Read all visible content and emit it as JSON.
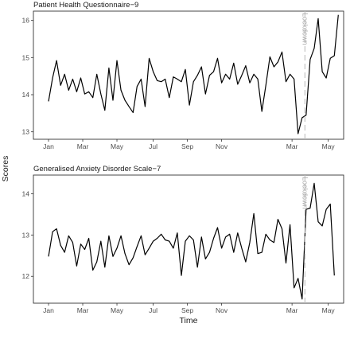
{
  "figure": {
    "x_axis_title": "Time",
    "y_axis_title": "Scores"
  },
  "chart_data": [
    {
      "type": "line",
      "title": "Patient Health Questionnaire−9",
      "xlabel": "Time",
      "ylabel": "Scores",
      "x_tick_labels": [
        "Jan",
        "Mar",
        "May",
        "Jul",
        "Sep",
        "Nov",
        "Mar",
        "May"
      ],
      "x_ticks_at_week": [
        0,
        8.5,
        17,
        26,
        34.5,
        43,
        60.5,
        69.5
      ],
      "y_ticks": [
        13,
        14,
        15,
        16
      ],
      "ylim": [
        12.8,
        16.25
      ],
      "annotation": {
        "label": "Lockdown",
        "at_week": 63.7,
        "style": "dashed"
      },
      "series": [
        {
          "x_unit": "weeks after start of January",
          "values": [
            13.82,
            14.45,
            14.92,
            14.25,
            14.55,
            14.12,
            14.42,
            14.08,
            14.45,
            14.02,
            14.08,
            13.92,
            14.55,
            14.02,
            13.58,
            14.72,
            13.85,
            14.92,
            14.12,
            13.85,
            13.68,
            13.52,
            14.22,
            14.42,
            13.68,
            14.98,
            14.62,
            14.38,
            14.35,
            14.42,
            13.92,
            14.48,
            14.42,
            14.35,
            14.68,
            13.72,
            14.35,
            14.52,
            14.75,
            14.02,
            14.52,
            14.62,
            14.98,
            14.32,
            14.55,
            14.42,
            14.85,
            14.28,
            14.52,
            14.78,
            14.32,
            14.55,
            14.42,
            13.55,
            14.25,
            15.02,
            14.75,
            14.88,
            15.15,
            14.35,
            14.55,
            14.42,
            12.95,
            13.38,
            13.45,
            14.95,
            15.25,
            16.05,
            14.62,
            14.45,
            14.98,
            15.05,
            16.15
          ]
        }
      ]
    },
    {
      "type": "line",
      "title": "Generalised Anxiety Disorder Scale−7",
      "xlabel": "Time",
      "ylabel": "Scores",
      "x_tick_labels": [
        "Jan",
        "Mar",
        "May",
        "Jul",
        "Sep",
        "Nov",
        "Mar",
        "May"
      ],
      "x_ticks_at_week": [
        0,
        8.5,
        17,
        26,
        34.5,
        43,
        60.5,
        69.5
      ],
      "y_ticks": [
        12,
        13,
        14
      ],
      "ylim": [
        11.35,
        14.45
      ],
      "annotation": {
        "label": "Lockdown",
        "at_week": 63.7,
        "style": "dashed"
      },
      "series": [
        {
          "x_unit": "weeks after start of January",
          "values": [
            12.48,
            13.08,
            13.15,
            12.75,
            12.58,
            12.98,
            12.82,
            12.25,
            12.78,
            12.65,
            12.92,
            12.15,
            12.35,
            12.85,
            12.22,
            12.98,
            12.48,
            12.68,
            12.98,
            12.55,
            12.28,
            12.45,
            12.72,
            12.98,
            12.52,
            12.68,
            12.85,
            12.92,
            13.02,
            12.88,
            12.85,
            12.68,
            13.05,
            12.02,
            12.85,
            12.98,
            12.88,
            12.22,
            12.95,
            12.42,
            12.58,
            12.92,
            13.18,
            12.68,
            12.95,
            13.02,
            12.58,
            13.05,
            12.68,
            12.35,
            12.82,
            13.52,
            12.55,
            12.58,
            13.02,
            12.88,
            12.82,
            13.38,
            13.15,
            12.32,
            13.25,
            11.72,
            11.95,
            11.45,
            13.62,
            13.65,
            14.25,
            13.32,
            13.22,
            13.62,
            13.75,
            12.02
          ]
        }
      ]
    }
  ]
}
